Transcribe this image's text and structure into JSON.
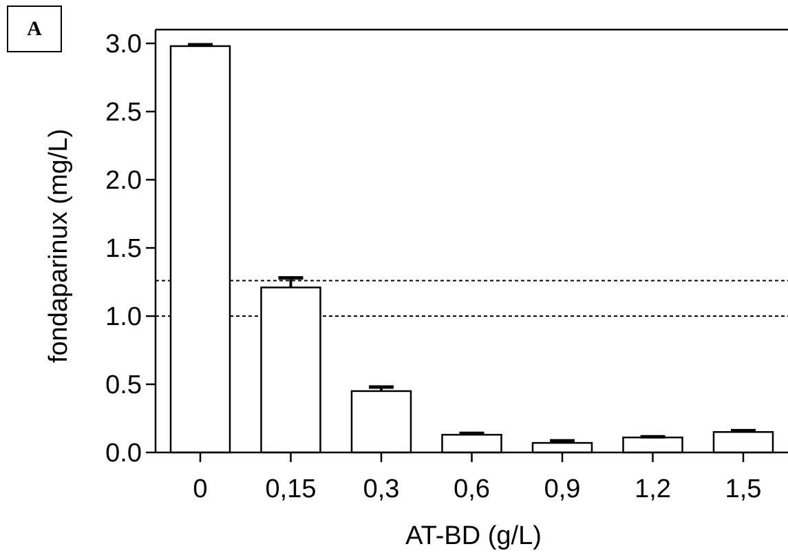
{
  "panel_label": "A",
  "chart_data": {
    "type": "bar",
    "xlabel": "AT-BD (g/L)",
    "ylabel": "fondaparinux (mg/L)",
    "ylim": [
      0,
      3.1
    ],
    "yticks": [
      "0.0",
      "0.5",
      "1.0",
      "1.5",
      "2.0",
      "2.5",
      "3.0"
    ],
    "ytick_values": [
      0,
      0.5,
      1.0,
      1.5,
      2.0,
      2.5,
      3.0
    ],
    "categories": [
      "0",
      "0,15",
      "0,3",
      "0,6",
      "0,9",
      "1,2",
      "1,5"
    ],
    "values": [
      2.98,
      1.21,
      0.45,
      0.13,
      0.07,
      0.11,
      0.15
    ],
    "errors": [
      0.01,
      0.07,
      0.03,
      0.01,
      0.015,
      0.005,
      0.01
    ],
    "reference_lines": [
      1.0,
      1.26
    ],
    "grid": false,
    "bar_color": "#ffffff",
    "edge_color": "#000000"
  }
}
